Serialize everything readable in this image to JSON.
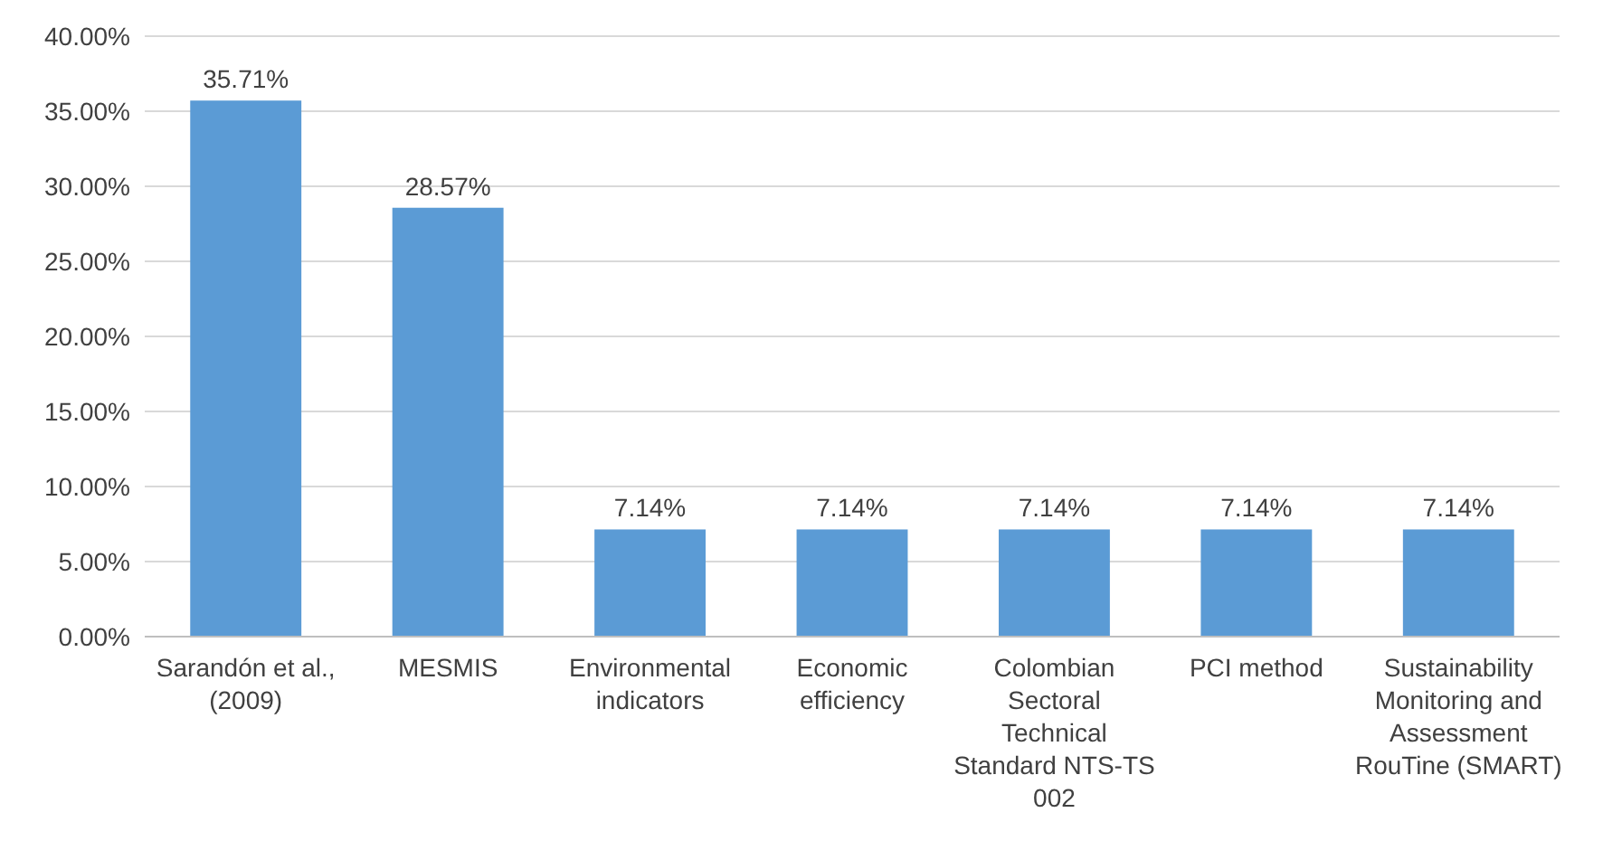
{
  "chart_data": {
    "type": "bar",
    "categories": [
      "Sarandón et al., (2009)",
      "MESMIS",
      "Environmental indicators",
      "Economic efficiency",
      "Colombian Sectoral Technical Standard NTS-TS 002",
      "PCI method",
      "Sustainability Monitoring and Assessment RouTine (SMART)"
    ],
    "values": [
      35.71,
      28.57,
      7.14,
      7.14,
      7.14,
      7.14,
      7.14
    ],
    "value_labels": [
      "35.71%",
      "28.57%",
      "7.14%",
      "7.14%",
      "7.14%",
      "7.14%",
      "7.14%"
    ],
    "color": "#5b9bd5",
    "ylim": [
      0,
      40
    ],
    "yticks": [
      {
        "value": 0,
        "label": "0.00%"
      },
      {
        "value": 5,
        "label": "5.00%"
      },
      {
        "value": 10,
        "label": "10.00%"
      },
      {
        "value": 15,
        "label": "15.00%"
      },
      {
        "value": 20,
        "label": "20.00%"
      },
      {
        "value": 25,
        "label": "25.00%"
      },
      {
        "value": 30,
        "label": "30.00%"
      },
      {
        "value": 35,
        "label": "35.00%"
      },
      {
        "value": 40,
        "label": "40.00%"
      }
    ],
    "grid": "y"
  }
}
